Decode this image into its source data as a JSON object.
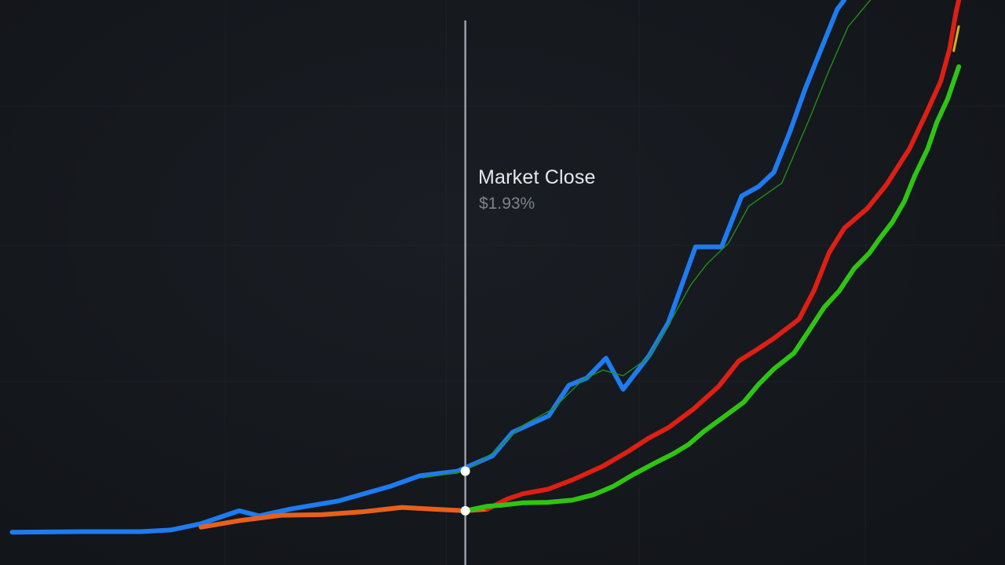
{
  "chart_data": {
    "type": "line",
    "title": "",
    "xlabel": "",
    "ylabel": "",
    "xlim": [
      0,
      100
    ],
    "ylim": [
      0,
      100
    ],
    "grid": true,
    "legend": "none",
    "colors": {
      "background": "#14171c",
      "grid": "#23272e",
      "marker_line": "#9a9ea5",
      "blue": "#1e7bf0",
      "red": "#dd1f14",
      "orange": "#e8601a",
      "green": "#2fc414",
      "thin_green": "#1f8f1a",
      "tip_yellow": "#d4b21a"
    },
    "marker": {
      "x": 46.3,
      "label": "Market Close",
      "value": "$1.93%"
    },
    "series": [
      {
        "color": "blue",
        "width": 6,
        "points": [
          [
            1.2,
            5.8
          ],
          [
            8,
            5.9
          ],
          [
            14,
            5.9
          ],
          [
            17,
            6.2
          ],
          [
            20,
            7.3
          ],
          [
            23.8,
            9.6
          ],
          [
            25.8,
            8.7
          ],
          [
            28.9,
            9.9
          ],
          [
            33.6,
            11.3
          ],
          [
            38.8,
            13.9
          ],
          [
            41.8,
            15.8
          ],
          [
            45.5,
            16.6
          ],
          [
            49,
            19.3
          ],
          [
            51,
            23.5
          ],
          [
            54.6,
            26.4
          ],
          [
            56.6,
            31.8
          ],
          [
            58.4,
            33.1
          ],
          [
            60.3,
            36.6
          ],
          [
            62,
            31.1
          ],
          [
            64.6,
            37.1
          ],
          [
            66.5,
            42.9
          ],
          [
            69.2,
            56.3
          ],
          [
            71.8,
            56.3
          ],
          [
            73.8,
            65.3
          ],
          [
            75.5,
            67
          ],
          [
            77,
            69.5
          ],
          [
            78.6,
            76.7
          ],
          [
            80.1,
            84.2
          ],
          [
            81.7,
            91.3
          ],
          [
            83.3,
            98.3
          ],
          [
            84,
            100
          ]
        ]
      },
      {
        "color": "thin_green",
        "width": 1.4,
        "points": [
          [
            42,
            15.4
          ],
          [
            46.3,
            16.6
          ],
          [
            49,
            19.8
          ],
          [
            52,
            24.7
          ],
          [
            55,
            27.6
          ],
          [
            58,
            32.8
          ],
          [
            60,
            34.5
          ],
          [
            62,
            33.5
          ],
          [
            64.5,
            36.7
          ],
          [
            66.5,
            42.4
          ],
          [
            68.7,
            49.5
          ],
          [
            70.3,
            53.2
          ],
          [
            72.5,
            57
          ],
          [
            74.5,
            63.5
          ],
          [
            77.8,
            67.6
          ],
          [
            80.5,
            78.8
          ],
          [
            82.5,
            87.6
          ],
          [
            84.4,
            95.3
          ],
          [
            86.6,
            100
          ]
        ]
      },
      {
        "color": "orange",
        "width": 6,
        "points": [
          [
            20,
            6.7
          ],
          [
            24,
            7.9
          ],
          [
            28,
            8.8
          ],
          [
            32,
            8.9
          ],
          [
            36,
            9.4
          ],
          [
            40,
            10.2
          ],
          [
            43,
            9.9
          ],
          [
            46.3,
            9.6
          ],
          [
            48.5,
            9.9
          ]
        ]
      },
      {
        "color": "red",
        "width": 6,
        "points": [
          [
            48.5,
            9.9
          ],
          [
            50.5,
            11.7
          ],
          [
            52,
            12.6
          ],
          [
            54.5,
            13.4
          ],
          [
            57,
            15.1
          ],
          [
            60,
            17.5
          ],
          [
            62.5,
            20.1
          ],
          [
            64.5,
            22.4
          ],
          [
            66.5,
            24.3
          ],
          [
            69,
            27.6
          ],
          [
            71.5,
            31.6
          ],
          [
            73.5,
            36.1
          ],
          [
            75.2,
            38
          ],
          [
            77,
            40.1
          ],
          [
            79.5,
            43.5
          ],
          [
            81,
            48.6
          ],
          [
            82.5,
            55.3
          ],
          [
            84,
            59.6
          ],
          [
            86.3,
            63.1
          ],
          [
            88.2,
            67.3
          ],
          [
            90.5,
            73.7
          ],
          [
            92.2,
            80.1
          ],
          [
            93.6,
            85.6
          ],
          [
            94.5,
            91.4
          ],
          [
            95.1,
            97.6
          ],
          [
            95.4,
            100
          ]
        ]
      },
      {
        "color": "green",
        "width": 6,
        "points": [
          [
            46.3,
            9.6
          ],
          [
            48.5,
            10.4
          ],
          [
            50,
            10.6
          ],
          [
            52,
            11
          ],
          [
            54.5,
            11.1
          ],
          [
            57,
            11.5
          ],
          [
            59,
            12.4
          ],
          [
            61,
            13.9
          ],
          [
            63,
            16
          ],
          [
            65,
            17.9
          ],
          [
            67,
            19.7
          ],
          [
            68.5,
            21.3
          ],
          [
            70,
            23.6
          ],
          [
            72,
            26.2
          ],
          [
            74,
            28.8
          ],
          [
            75.5,
            32
          ],
          [
            77,
            34.7
          ],
          [
            79,
            37.5
          ],
          [
            80.5,
            41.5
          ],
          [
            82,
            45.6
          ],
          [
            83.5,
            48.5
          ],
          [
            85,
            52.5
          ],
          [
            86.5,
            55.2
          ],
          [
            87.5,
            57.7
          ],
          [
            88.8,
            60.7
          ],
          [
            90,
            64.4
          ],
          [
            91,
            68.8
          ],
          [
            92.3,
            73.6
          ],
          [
            93.2,
            78.3
          ],
          [
            94.3,
            82.5
          ],
          [
            95.4,
            88.2
          ]
        ]
      },
      {
        "color": "tip_yellow",
        "width": 3,
        "points": [
          [
            94.9,
            91
          ],
          [
            95.4,
            95.3
          ]
        ]
      }
    ],
    "points_highlight": [
      [
        46.3,
        16.6
      ],
      [
        46.3,
        9.6
      ]
    ]
  }
}
